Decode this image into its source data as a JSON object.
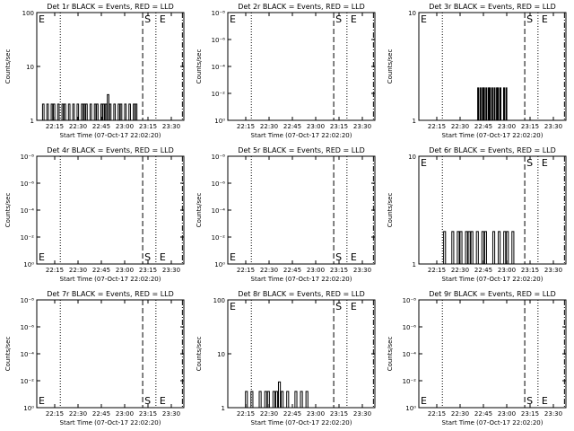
{
  "chart_data": [
    {
      "type": "line",
      "title": "Det 1r BLACK = Events, RED = LLD",
      "xlabel": "Start Time (07-Oct-17 22:02:20)",
      "ylabel": "Counts/sec",
      "yscale": "log",
      "ylim": [
        1,
        100
      ],
      "ytick_labels": [
        "1",
        "10",
        "100"
      ],
      "xtick_labels": [
        "22:15",
        "22:30",
        "22:45",
        "23:00",
        "23:15",
        "23:30"
      ],
      "markers": {
        "E_left": "E",
        "S": "S",
        "E": "E"
      },
      "series": [
        {
          "values": [
            1,
            2,
            1,
            2,
            1,
            2,
            2,
            1,
            2,
            1,
            2,
            2,
            1,
            2,
            1,
            2,
            1,
            2,
            1,
            2,
            2,
            2,
            1,
            2,
            1,
            2,
            2,
            1,
            2,
            2,
            2,
            3,
            2,
            1,
            2,
            1,
            2,
            2,
            1,
            2,
            1,
            2,
            1,
            2,
            2,
            1
          ]
        }
      ]
    },
    {
      "type": "line",
      "title": "Det 2r BLACK = Events, RED = LLD",
      "xlabel": "Start Time (07-Oct-17 22:02:20)",
      "ylabel": "Counts/sec",
      "yscale": "log",
      "ylim": [
        1,
        1e-08
      ],
      "ytick_labels": [
        "10⁰",
        "10⁻²",
        "10⁻⁴",
        "10⁻⁶",
        "10⁻⁸"
      ],
      "xtick_labels": [
        "22:15",
        "22:30",
        "22:45",
        "23:00",
        "23:15",
        "23:30"
      ],
      "markers": {
        "E_left": "E",
        "S": "S",
        "E": "E"
      },
      "series": [
        {
          "values": []
        }
      ]
    },
    {
      "type": "line",
      "title": "Det 3r BLACK = Events, RED = LLD",
      "xlabel": "Start Time (07-Oct-17 22:02:20)",
      "ylabel": "Counts/sec",
      "yscale": "log",
      "ylim": [
        1,
        10
      ],
      "ytick_labels": [
        "1",
        "10"
      ],
      "xtick_labels": [
        "22:15",
        "22:30",
        "22:45",
        "23:00",
        "23:15",
        "23:30"
      ],
      "markers": {
        "E_left": "E",
        "S": "S",
        "E": "E"
      },
      "series": [
        {
          "values": [
            2,
            1,
            2,
            1,
            2,
            2,
            1,
            2,
            1,
            2,
            2,
            1,
            2,
            1,
            2,
            1,
            2,
            2,
            1,
            2,
            1,
            1,
            2,
            1,
            2
          ]
        }
      ]
    },
    {
      "type": "line",
      "title": "Det 4r BLACK = Events, RED = LLD",
      "xlabel": "Start Time (07-Oct-17 22:02:20)",
      "ylabel": "Counts/sec",
      "yscale": "log",
      "ylim": [
        1,
        1e-08
      ],
      "ytick_labels": [
        "10⁰",
        "10⁻²",
        "10⁻⁴",
        "10⁻⁶",
        "10⁻⁸"
      ],
      "xtick_labels": [
        "22:15",
        "22:30",
        "22:45",
        "23:00",
        "23:15",
        "23:30"
      ],
      "markers": {
        "E_left": "E",
        "S": "S",
        "E": "E"
      },
      "series": [
        {
          "values": []
        }
      ]
    },
    {
      "type": "line",
      "title": "Det 5r BLACK = Events, RED = LLD",
      "xlabel": "Start Time (07-Oct-17 22:02:20)",
      "ylabel": "Counts/sec",
      "yscale": "log",
      "ylim": [
        1,
        1e-08
      ],
      "ytick_labels": [
        "10⁰",
        "10⁻²",
        "10⁻⁴",
        "10⁻⁶",
        "10⁻⁸"
      ],
      "xtick_labels": [
        "22:15",
        "22:30",
        "22:45",
        "23:00",
        "23:15",
        "23:30"
      ],
      "markers": {
        "E_left": "E",
        "S": "S",
        "E": "E"
      },
      "series": [
        {
          "values": []
        }
      ]
    },
    {
      "type": "line",
      "title": "Det 6r BLACK = Events, RED = LLD",
      "xlabel": "Start Time (07-Oct-17 22:02:20)",
      "ylabel": "Counts/sec",
      "yscale": "log",
      "ylim": [
        1,
        10
      ],
      "ytick_labels": [
        "1",
        "10"
      ],
      "xtick_labels": [
        "22:15",
        "22:30",
        "22:45",
        "23:00",
        "23:15",
        "23:30"
      ],
      "markers": {
        "E_left": "E",
        "S": "S",
        "E": "E"
      },
      "series": [
        {
          "values": [
            1,
            2,
            1,
            1,
            2,
            1,
            2,
            2,
            1,
            2,
            2,
            2,
            1,
            2,
            1,
            2,
            2,
            1,
            1,
            2,
            1,
            2,
            1,
            2,
            2,
            1,
            2,
            1
          ]
        }
      ]
    },
    {
      "type": "line",
      "title": "Det 7r BLACK = Events, RED = LLD",
      "xlabel": "Start Time (07-Oct-17 22:02:20)",
      "ylabel": "Counts/sec",
      "yscale": "log",
      "ylim": [
        1,
        1e-08
      ],
      "ytick_labels": [
        "10⁰",
        "10⁻²",
        "10⁻⁴",
        "10⁻⁶",
        "10⁻⁸"
      ],
      "xtick_labels": [
        "22:15",
        "22:30",
        "22:45",
        "23:00",
        "23:15",
        "23:30"
      ],
      "markers": {
        "E_left": "E",
        "S": "S",
        "E": "E"
      },
      "series": [
        {
          "values": []
        }
      ]
    },
    {
      "type": "line",
      "title": "Det 8r BLACK = Events, RED = LLD",
      "xlabel": "Start Time (07-Oct-17 22:02:20)",
      "ylabel": "Counts/sec",
      "yscale": "log",
      "ylim": [
        1,
        100
      ],
      "ytick_labels": [
        "1",
        "10",
        "100"
      ],
      "xtick_labels": [
        "22:15",
        "22:30",
        "22:45",
        "23:00",
        "23:15",
        "23:30"
      ],
      "markers": {
        "E_left": "E",
        "S": "S",
        "E": "E"
      },
      "series": [
        {
          "values": [
            2,
            1,
            2,
            1,
            1,
            2,
            1,
            2,
            2,
            1,
            2,
            2,
            3,
            2,
            1,
            2,
            1,
            1,
            2,
            1,
            2,
            1,
            2
          ]
        }
      ]
    },
    {
      "type": "line",
      "title": "Det 9r BLACK = Events, RED = LLD",
      "xlabel": "Start Time (07-Oct-17 22:02:20)",
      "ylabel": "Counts/sec",
      "yscale": "log",
      "ylim": [
        1,
        1e-08
      ],
      "ytick_labels": [
        "10⁰",
        "10⁻²",
        "10⁻⁴",
        "10⁻⁶",
        "10⁻⁸"
      ],
      "xtick_labels": [
        "22:15",
        "22:30",
        "22:45",
        "23:00",
        "23:15",
        "23:30"
      ],
      "markers": {
        "E_left": "E",
        "S": "S",
        "E": "E"
      },
      "series": [
        {
          "values": []
        }
      ]
    }
  ]
}
